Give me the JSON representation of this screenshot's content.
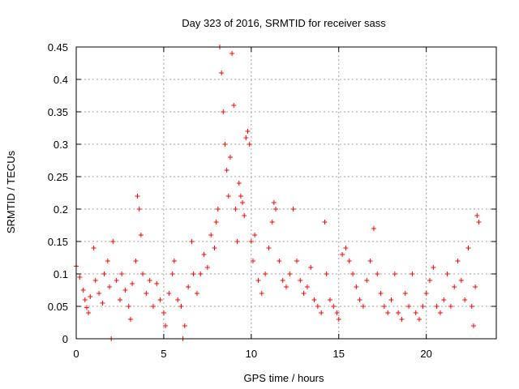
{
  "chart_data": {
    "type": "scatter",
    "title": "Day 323 of 2016, SRMTID for receiver sass",
    "xlabel": "GPS time / hours",
    "ylabel": "SRMTID / TECUs",
    "xlim": [
      0,
      24
    ],
    "ylim": [
      0,
      0.45
    ],
    "xticks": [
      0,
      5,
      10,
      15,
      20
    ],
    "xtick_labels": [
      "0",
      "5",
      "10",
      "15",
      "20"
    ],
    "yticks": [
      0,
      0.05,
      0.1,
      0.15,
      0.2,
      0.25,
      0.3,
      0.35,
      0.4,
      0.45
    ],
    "ytick_labels": [
      "0",
      "0.05",
      "0.1",
      "0.15",
      "0.2",
      "0.25",
      "0.3",
      "0.35",
      "0.4",
      "0.45"
    ],
    "grid": true,
    "marker": "+",
    "color": "#ff0000",
    "series": [
      {
        "name": "SRMTID",
        "points": [
          [
            0.0,
            0.112
          ],
          [
            0.2,
            0.095
          ],
          [
            0.4,
            0.075
          ],
          [
            0.5,
            0.06
          ],
          [
            0.6,
            0.048
          ],
          [
            0.7,
            0.04
          ],
          [
            0.8,
            0.065
          ],
          [
            1.0,
            0.14
          ],
          [
            1.1,
            0.09
          ],
          [
            1.3,
            0.07
          ],
          [
            1.5,
            0.055
          ],
          [
            1.6,
            0.1
          ],
          [
            1.8,
            0.12
          ],
          [
            1.9,
            0.08
          ],
          [
            2.0,
            0.0
          ],
          [
            2.1,
            0.15
          ],
          [
            2.3,
            0.09
          ],
          [
            2.5,
            0.06
          ],
          [
            2.6,
            0.1
          ],
          [
            2.8,
            0.075
          ],
          [
            3.0,
            0.05
          ],
          [
            3.1,
            0.03
          ],
          [
            3.2,
            0.085
          ],
          [
            3.4,
            0.12
          ],
          [
            3.5,
            0.22
          ],
          [
            3.6,
            0.2
          ],
          [
            3.7,
            0.16
          ],
          [
            3.8,
            0.1
          ],
          [
            4.0,
            0.07
          ],
          [
            4.2,
            0.09
          ],
          [
            4.4,
            0.05
          ],
          [
            4.6,
            0.085
          ],
          [
            4.8,
            0.06
          ],
          [
            5.0,
            0.04
          ],
          [
            5.1,
            0.02
          ],
          [
            5.3,
            0.07
          ],
          [
            5.5,
            0.1
          ],
          [
            5.6,
            0.12
          ],
          [
            5.8,
            0.06
          ],
          [
            6.0,
            0.05
          ],
          [
            6.1,
            0.0
          ],
          [
            6.2,
            0.02
          ],
          [
            6.4,
            0.08
          ],
          [
            6.6,
            0.15
          ],
          [
            6.7,
            0.1
          ],
          [
            6.9,
            0.07
          ],
          [
            7.1,
            0.1
          ],
          [
            7.3,
            0.13
          ],
          [
            7.5,
            0.11
          ],
          [
            7.7,
            0.16
          ],
          [
            7.9,
            0.14
          ],
          [
            8.0,
            0.18
          ],
          [
            8.1,
            0.2
          ],
          [
            8.2,
            0.45
          ],
          [
            8.3,
            0.41
          ],
          [
            8.4,
            0.35
          ],
          [
            8.5,
            0.3
          ],
          [
            8.6,
            0.26
          ],
          [
            8.7,
            0.22
          ],
          [
            8.8,
            0.28
          ],
          [
            8.9,
            0.44
          ],
          [
            9.0,
            0.36
          ],
          [
            9.1,
            0.2
          ],
          [
            9.2,
            0.15
          ],
          [
            9.3,
            0.24
          ],
          [
            9.4,
            0.22
          ],
          [
            9.5,
            0.21
          ],
          [
            9.6,
            0.19
          ],
          [
            9.7,
            0.31
          ],
          [
            9.8,
            0.32
          ],
          [
            9.9,
            0.3
          ],
          [
            10.0,
            0.15
          ],
          [
            10.1,
            0.12
          ],
          [
            10.2,
            0.16
          ],
          [
            10.4,
            0.09
          ],
          [
            10.6,
            0.07
          ],
          [
            10.8,
            0.1
          ],
          [
            11.0,
            0.14
          ],
          [
            11.2,
            0.18
          ],
          [
            11.3,
            0.21
          ],
          [
            11.4,
            0.2
          ],
          [
            11.6,
            0.12
          ],
          [
            11.8,
            0.09
          ],
          [
            12.0,
            0.08
          ],
          [
            12.2,
            0.1
          ],
          [
            12.4,
            0.2
          ],
          [
            12.6,
            0.12
          ],
          [
            12.8,
            0.09
          ],
          [
            13.0,
            0.07
          ],
          [
            13.2,
            0.08
          ],
          [
            13.4,
            0.11
          ],
          [
            13.6,
            0.06
          ],
          [
            13.8,
            0.05
          ],
          [
            14.0,
            0.04
          ],
          [
            14.2,
            0.18
          ],
          [
            14.3,
            0.1
          ],
          [
            14.5,
            0.06
          ],
          [
            14.7,
            0.05
          ],
          [
            14.9,
            0.04
          ],
          [
            15.0,
            0.03
          ],
          [
            15.2,
            0.13
          ],
          [
            15.4,
            0.14
          ],
          [
            15.6,
            0.12
          ],
          [
            15.8,
            0.1
          ],
          [
            16.0,
            0.08
          ],
          [
            16.2,
            0.06
          ],
          [
            16.4,
            0.05
          ],
          [
            16.6,
            0.09
          ],
          [
            16.8,
            0.12
          ],
          [
            17.0,
            0.17
          ],
          [
            17.2,
            0.1
          ],
          [
            17.4,
            0.07
          ],
          [
            17.6,
            0.05
          ],
          [
            17.8,
            0.04
          ],
          [
            18.0,
            0.06
          ],
          [
            18.2,
            0.1
          ],
          [
            18.4,
            0.04
          ],
          [
            18.6,
            0.03
          ],
          [
            18.8,
            0.07
          ],
          [
            19.0,
            0.05
          ],
          [
            19.2,
            0.1
          ],
          [
            19.4,
            0.04
          ],
          [
            19.6,
            0.03
          ],
          [
            19.8,
            0.05
          ],
          [
            20.0,
            0.07
          ],
          [
            20.2,
            0.09
          ],
          [
            20.4,
            0.11
          ],
          [
            20.6,
            0.05
          ],
          [
            20.8,
            0.04
          ],
          [
            21.0,
            0.06
          ],
          [
            21.2,
            0.1
          ],
          [
            21.4,
            0.05
          ],
          [
            21.6,
            0.08
          ],
          [
            21.8,
            0.12
          ],
          [
            22.0,
            0.09
          ],
          [
            22.2,
            0.06
          ],
          [
            22.4,
            0.14
          ],
          [
            22.6,
            0.05
          ],
          [
            22.7,
            0.02
          ],
          [
            22.8,
            0.08
          ],
          [
            22.9,
            0.19
          ],
          [
            23.0,
            0.18
          ]
        ]
      }
    ]
  }
}
